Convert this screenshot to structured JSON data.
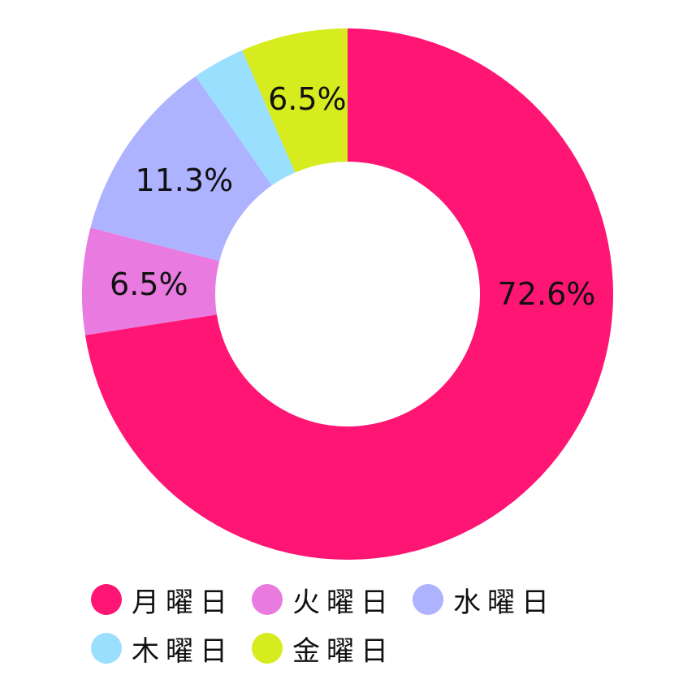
{
  "chart_data": {
    "type": "pie",
    "donut": true,
    "categories": [
      "月曜日",
      "火曜日",
      "水曜日",
      "木曜日",
      "金曜日"
    ],
    "values": [
      72.6,
      6.5,
      11.3,
      3.2,
      6.5
    ],
    "data_labels": [
      "72.6%",
      "6.5%",
      "11.3%",
      "",
      "6.5%"
    ],
    "colors": [
      "#ff1573",
      "#e87ae0",
      "#aeb3ff",
      "#9bdfff",
      "#d6ec1e"
    ],
    "legend_position": "bottom",
    "start_angle": "top",
    "direction": "clockwise"
  }
}
